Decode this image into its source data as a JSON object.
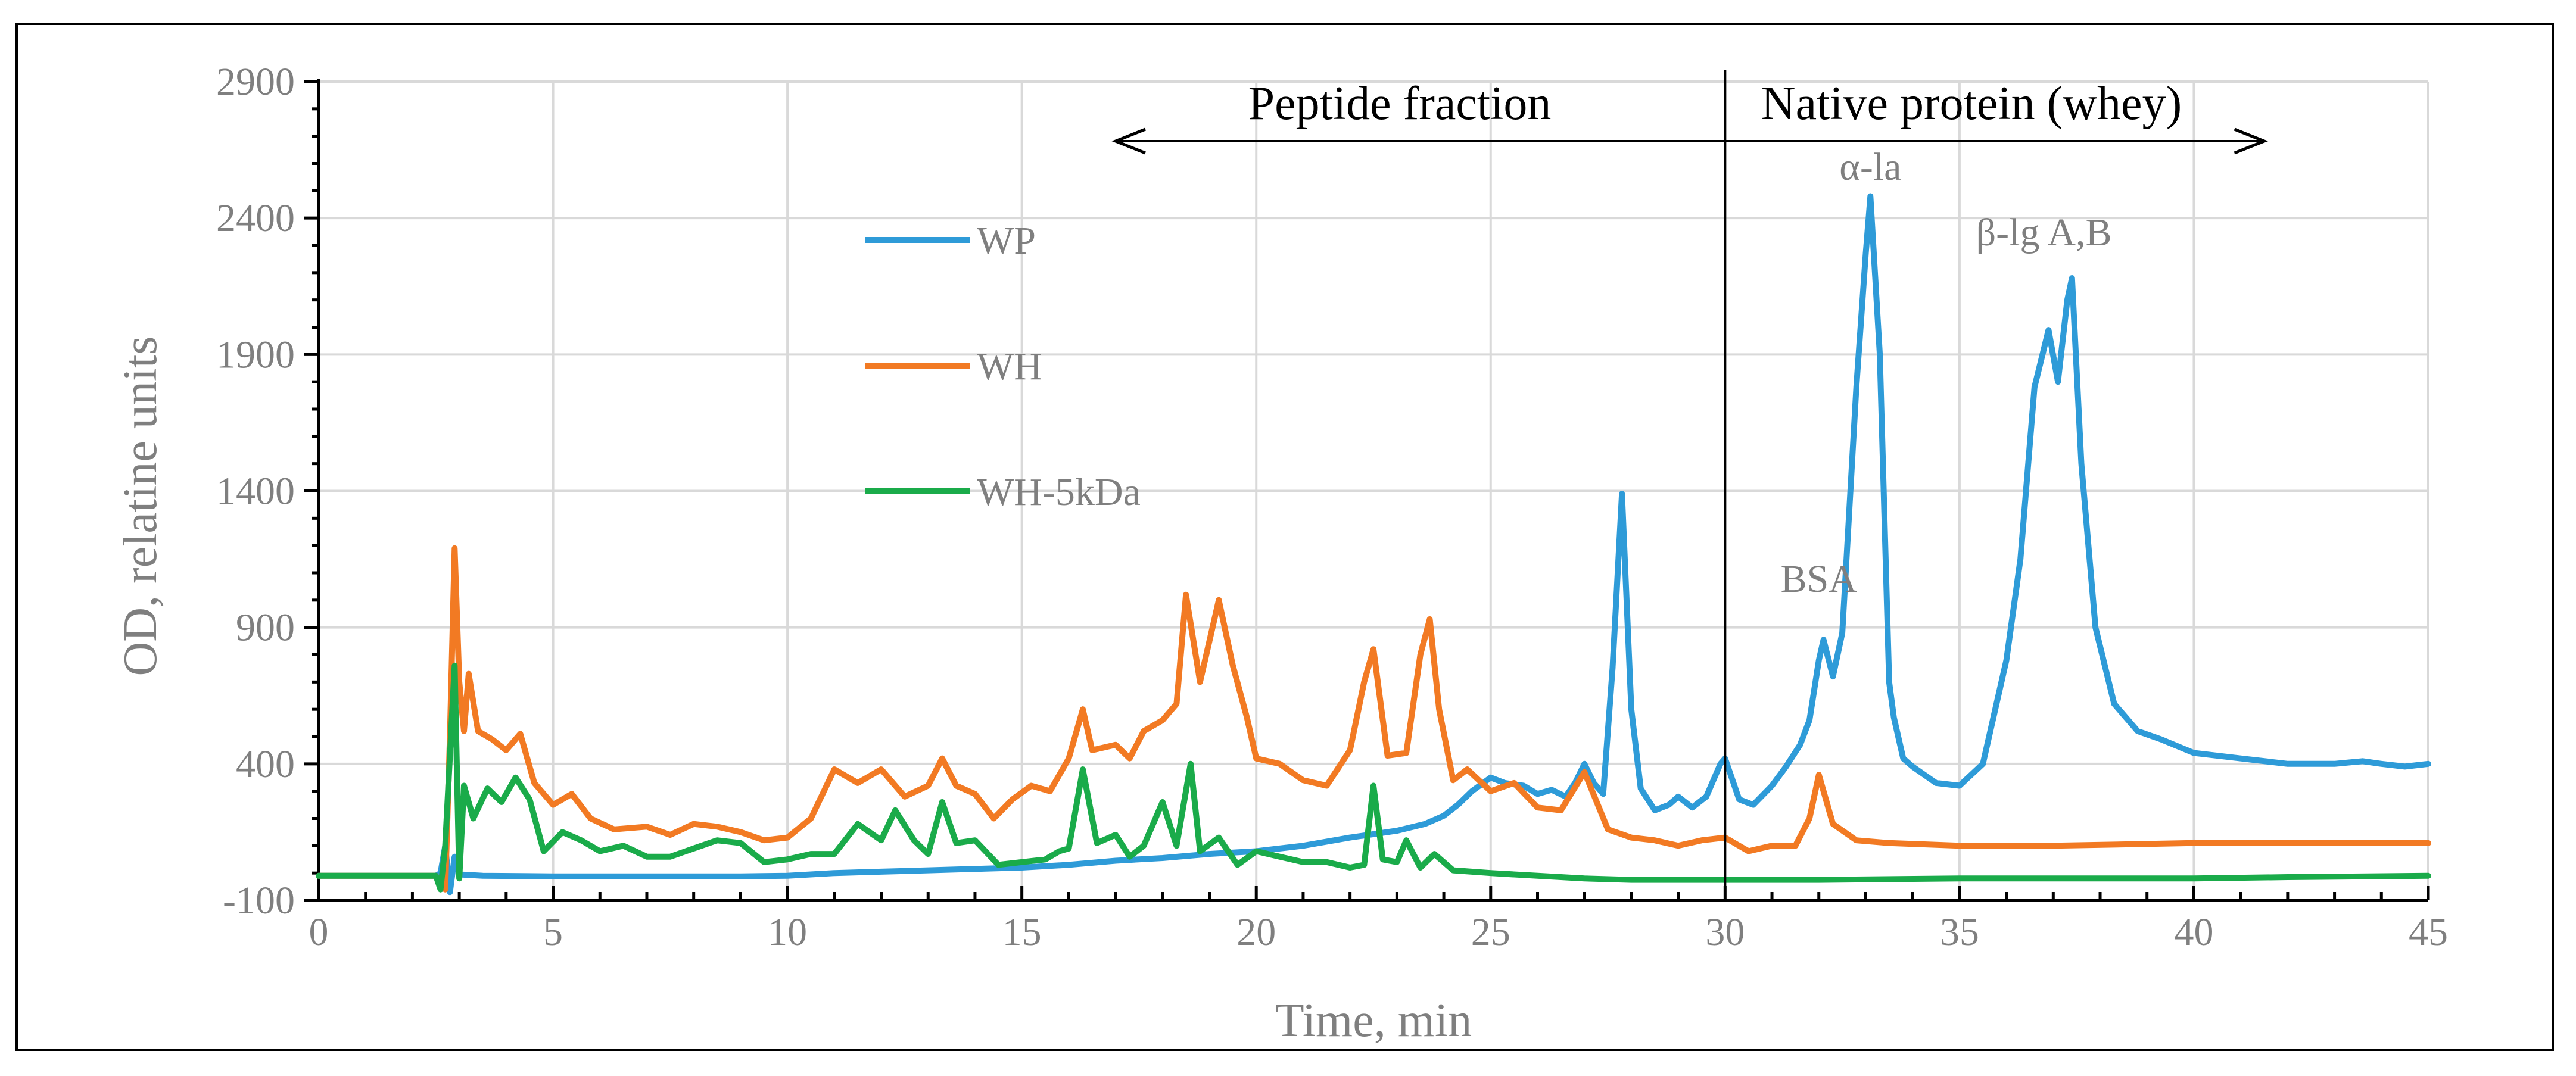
{
  "chart_data": {
    "type": "line",
    "xlabel": "Time, min",
    "ylabel": "OD, relatine units",
    "xlim": [
      0,
      45
    ],
    "ylim": [
      -100,
      2900
    ],
    "xticks": [
      0,
      5,
      10,
      15,
      20,
      25,
      30,
      35,
      40,
      45
    ],
    "yticks": [
      -100,
      400,
      900,
      1400,
      1900,
      2400,
      2900
    ],
    "grid": true,
    "legend_position": "upper-left inside plot",
    "region_divider_x": 30,
    "regions": [
      {
        "label": "Peptide fraction",
        "arrow_direction": "left",
        "arrow_from": 30,
        "arrow_to": 17
      },
      {
        "label": "Native protein (whey)",
        "arrow_direction": "right",
        "arrow_from": 30,
        "arrow_to": 41.5
      }
    ],
    "annotations": [
      {
        "text": "α-la",
        "x": 33.1,
        "y": 2540
      },
      {
        "text": "β-lg A,B",
        "x": 36.8,
        "y": 2300
      },
      {
        "text": "BSA",
        "x": 32.0,
        "y": 1030
      }
    ],
    "series": [
      {
        "name": "WP",
        "color": "#2e9bd8",
        "points": [
          [
            0,
            -10
          ],
          [
            2.5,
            -10
          ],
          [
            2.6,
            0
          ],
          [
            2.7,
            100
          ],
          [
            2.8,
            -70
          ],
          [
            2.9,
            60
          ],
          [
            3.0,
            -5
          ],
          [
            3.5,
            -10
          ],
          [
            5,
            -12
          ],
          [
            7,
            -12
          ],
          [
            9,
            -12
          ],
          [
            10,
            -10
          ],
          [
            11,
            0
          ],
          [
            12,
            5
          ],
          [
            13,
            10
          ],
          [
            14,
            15
          ],
          [
            15,
            20
          ],
          [
            16,
            30
          ],
          [
            17,
            45
          ],
          [
            18,
            55
          ],
          [
            19,
            70
          ],
          [
            20,
            80
          ],
          [
            21,
            100
          ],
          [
            22,
            130
          ],
          [
            23,
            155
          ],
          [
            23.6,
            180
          ],
          [
            24,
            210
          ],
          [
            24.3,
            250
          ],
          [
            24.6,
            300
          ],
          [
            25,
            350
          ],
          [
            25.3,
            330
          ],
          [
            25.7,
            320
          ],
          [
            26,
            290
          ],
          [
            26.3,
            305
          ],
          [
            26.6,
            280
          ],
          [
            26.8,
            330
          ],
          [
            27,
            400
          ],
          [
            27.2,
            330
          ],
          [
            27.4,
            290
          ],
          [
            27.6,
            750
          ],
          [
            27.8,
            1390
          ],
          [
            28.0,
            600
          ],
          [
            28.2,
            310
          ],
          [
            28.5,
            230
          ],
          [
            28.8,
            250
          ],
          [
            29,
            280
          ],
          [
            29.3,
            240
          ],
          [
            29.6,
            280
          ],
          [
            29.9,
            400
          ],
          [
            30.0,
            420
          ],
          [
            30.3,
            270
          ],
          [
            30.6,
            250
          ],
          [
            31,
            320
          ],
          [
            31.3,
            390
          ],
          [
            31.6,
            470
          ],
          [
            31.8,
            560
          ],
          [
            32.0,
            780
          ],
          [
            32.1,
            855
          ],
          [
            32.3,
            720
          ],
          [
            32.5,
            880
          ],
          [
            32.8,
            1780
          ],
          [
            33.0,
            2270
          ],
          [
            33.1,
            2480
          ],
          [
            33.3,
            1900
          ],
          [
            33.5,
            700
          ],
          [
            33.6,
            570
          ],
          [
            33.8,
            420
          ],
          [
            34.0,
            390
          ],
          [
            34.5,
            330
          ],
          [
            35.0,
            320
          ],
          [
            35.5,
            400
          ],
          [
            36.0,
            780
          ],
          [
            36.3,
            1150
          ],
          [
            36.6,
            1780
          ],
          [
            36.9,
            1990
          ],
          [
            37.1,
            1800
          ],
          [
            37.3,
            2100
          ],
          [
            37.4,
            2180
          ],
          [
            37.6,
            1500
          ],
          [
            37.9,
            900
          ],
          [
            38.3,
            620
          ],
          [
            38.8,
            520
          ],
          [
            39.3,
            490
          ],
          [
            40,
            440
          ],
          [
            41,
            420
          ],
          [
            42,
            400
          ],
          [
            43,
            400
          ],
          [
            43.6,
            410
          ],
          [
            44,
            400
          ],
          [
            44.5,
            390
          ],
          [
            45,
            400
          ]
        ]
      },
      {
        "name": "WH",
        "color": "#f27a23",
        "points": [
          [
            0,
            -10
          ],
          [
            2.5,
            -10
          ],
          [
            2.7,
            -60
          ],
          [
            2.8,
            500
          ],
          [
            2.9,
            1190
          ],
          [
            3.0,
            700
          ],
          [
            3.1,
            520
          ],
          [
            3.2,
            730
          ],
          [
            3.4,
            520
          ],
          [
            3.7,
            490
          ],
          [
            4.0,
            450
          ],
          [
            4.3,
            510
          ],
          [
            4.6,
            330
          ],
          [
            5.0,
            250
          ],
          [
            5.4,
            290
          ],
          [
            5.8,
            200
          ],
          [
            6.3,
            160
          ],
          [
            7.0,
            170
          ],
          [
            7.5,
            140
          ],
          [
            8.0,
            180
          ],
          [
            8.5,
            170
          ],
          [
            9.0,
            150
          ],
          [
            9.5,
            120
          ],
          [
            10.0,
            130
          ],
          [
            10.5,
            200
          ],
          [
            11.0,
            380
          ],
          [
            11.5,
            330
          ],
          [
            12.0,
            380
          ],
          [
            12.5,
            280
          ],
          [
            13.0,
            320
          ],
          [
            13.3,
            420
          ],
          [
            13.6,
            320
          ],
          [
            14.0,
            290
          ],
          [
            14.4,
            200
          ],
          [
            14.8,
            270
          ],
          [
            15.2,
            320
          ],
          [
            15.6,
            300
          ],
          [
            16.0,
            420
          ],
          [
            16.3,
            600
          ],
          [
            16.5,
            450
          ],
          [
            17.0,
            470
          ],
          [
            17.3,
            420
          ],
          [
            17.6,
            520
          ],
          [
            18.0,
            560
          ],
          [
            18.3,
            620
          ],
          [
            18.5,
            1020
          ],
          [
            18.8,
            700
          ],
          [
            19.2,
            1000
          ],
          [
            19.5,
            760
          ],
          [
            19.8,
            570
          ],
          [
            20.0,
            420
          ],
          [
            20.5,
            400
          ],
          [
            21.0,
            340
          ],
          [
            21.5,
            320
          ],
          [
            22.0,
            450
          ],
          [
            22.3,
            700
          ],
          [
            22.5,
            820
          ],
          [
            22.8,
            430
          ],
          [
            23.2,
            440
          ],
          [
            23.5,
            800
          ],
          [
            23.7,
            930
          ],
          [
            23.9,
            600
          ],
          [
            24.2,
            340
          ],
          [
            24.5,
            380
          ],
          [
            25.0,
            300
          ],
          [
            25.5,
            330
          ],
          [
            26.0,
            240
          ],
          [
            26.5,
            230
          ],
          [
            27.0,
            370
          ],
          [
            27.5,
            160
          ],
          [
            28,
            130
          ],
          [
            28.5,
            120
          ],
          [
            29,
            100
          ],
          [
            29.5,
            120
          ],
          [
            30,
            130
          ],
          [
            30.5,
            80
          ],
          [
            31,
            100
          ],
          [
            31.5,
            100
          ],
          [
            31.8,
            200
          ],
          [
            32.0,
            360
          ],
          [
            32.3,
            180
          ],
          [
            32.8,
            120
          ],
          [
            33.5,
            110
          ],
          [
            35,
            100
          ],
          [
            37,
            100
          ],
          [
            40,
            110
          ],
          [
            42,
            110
          ],
          [
            45,
            110
          ]
        ]
      },
      {
        "name": "WH-5kDa",
        "color": "#1aab4a",
        "points": [
          [
            0,
            -10
          ],
          [
            2.5,
            -10
          ],
          [
            2.6,
            -60
          ],
          [
            2.7,
            100
          ],
          [
            2.9,
            760
          ],
          [
            3.0,
            -20
          ],
          [
            3.1,
            320
          ],
          [
            3.3,
            200
          ],
          [
            3.6,
            310
          ],
          [
            3.9,
            260
          ],
          [
            4.2,
            350
          ],
          [
            4.5,
            270
          ],
          [
            4.8,
            80
          ],
          [
            5.2,
            150
          ],
          [
            5.6,
            120
          ],
          [
            6.0,
            80
          ],
          [
            6.5,
            100
          ],
          [
            7.0,
            60
          ],
          [
            7.5,
            60
          ],
          [
            8.0,
            90
          ],
          [
            8.5,
            120
          ],
          [
            9.0,
            110
          ],
          [
            9.5,
            40
          ],
          [
            10.0,
            50
          ],
          [
            10.5,
            70
          ],
          [
            11.0,
            70
          ],
          [
            11.5,
            180
          ],
          [
            12.0,
            120
          ],
          [
            12.3,
            230
          ],
          [
            12.7,
            120
          ],
          [
            13.0,
            70
          ],
          [
            13.3,
            260
          ],
          [
            13.6,
            110
          ],
          [
            14,
            120
          ],
          [
            14.5,
            30
          ],
          [
            15,
            40
          ],
          [
            15.5,
            50
          ],
          [
            15.8,
            80
          ],
          [
            16.0,
            90
          ],
          [
            16.3,
            380
          ],
          [
            16.6,
            110
          ],
          [
            17.0,
            140
          ],
          [
            17.3,
            60
          ],
          [
            17.6,
            100
          ],
          [
            18.0,
            260
          ],
          [
            18.3,
            100
          ],
          [
            18.6,
            400
          ],
          [
            18.8,
            80
          ],
          [
            19.2,
            130
          ],
          [
            19.6,
            30
          ],
          [
            20.0,
            80
          ],
          [
            20.5,
            60
          ],
          [
            21.0,
            40
          ],
          [
            21.5,
            40
          ],
          [
            22.0,
            20
          ],
          [
            22.3,
            30
          ],
          [
            22.5,
            320
          ],
          [
            22.7,
            50
          ],
          [
            23.0,
            40
          ],
          [
            23.2,
            120
          ],
          [
            23.5,
            20
          ],
          [
            23.8,
            70
          ],
          [
            24.2,
            10
          ],
          [
            25,
            0
          ],
          [
            26,
            -10
          ],
          [
            27,
            -20
          ],
          [
            28,
            -25
          ],
          [
            29,
            -25
          ],
          [
            30,
            -25
          ],
          [
            32,
            -25
          ],
          [
            35,
            -20
          ],
          [
            38,
            -20
          ],
          [
            40,
            -20
          ],
          [
            42,
            -15
          ],
          [
            45,
            -10
          ]
        ]
      }
    ]
  }
}
